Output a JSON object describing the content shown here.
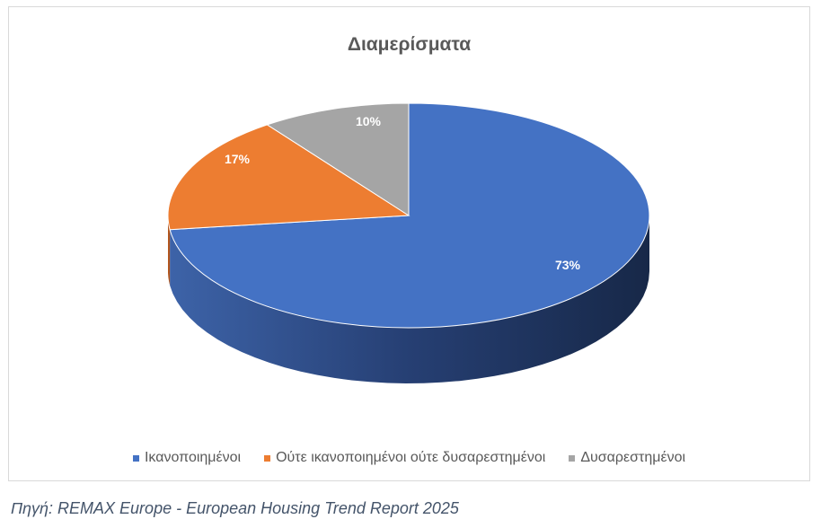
{
  "chart_data": {
    "type": "pie",
    "title": "Διαμερίσματα",
    "categories": [
      "Ικανοποιημένοι",
      "Ούτε ικανοποιημένοι ούτε δυσαρεστημένοι",
      "Δυσαρεστημένοι"
    ],
    "values": [
      73,
      17,
      10
    ],
    "data_labels": [
      "73%",
      "17%",
      "10%"
    ],
    "colors": [
      "#4472c4",
      "#ed7d31",
      "#a5a5a5"
    ],
    "legend_position": "bottom",
    "style": "3d"
  },
  "caption": "Πηγή: REMAX Europe - European Housing Trend Report 2025"
}
